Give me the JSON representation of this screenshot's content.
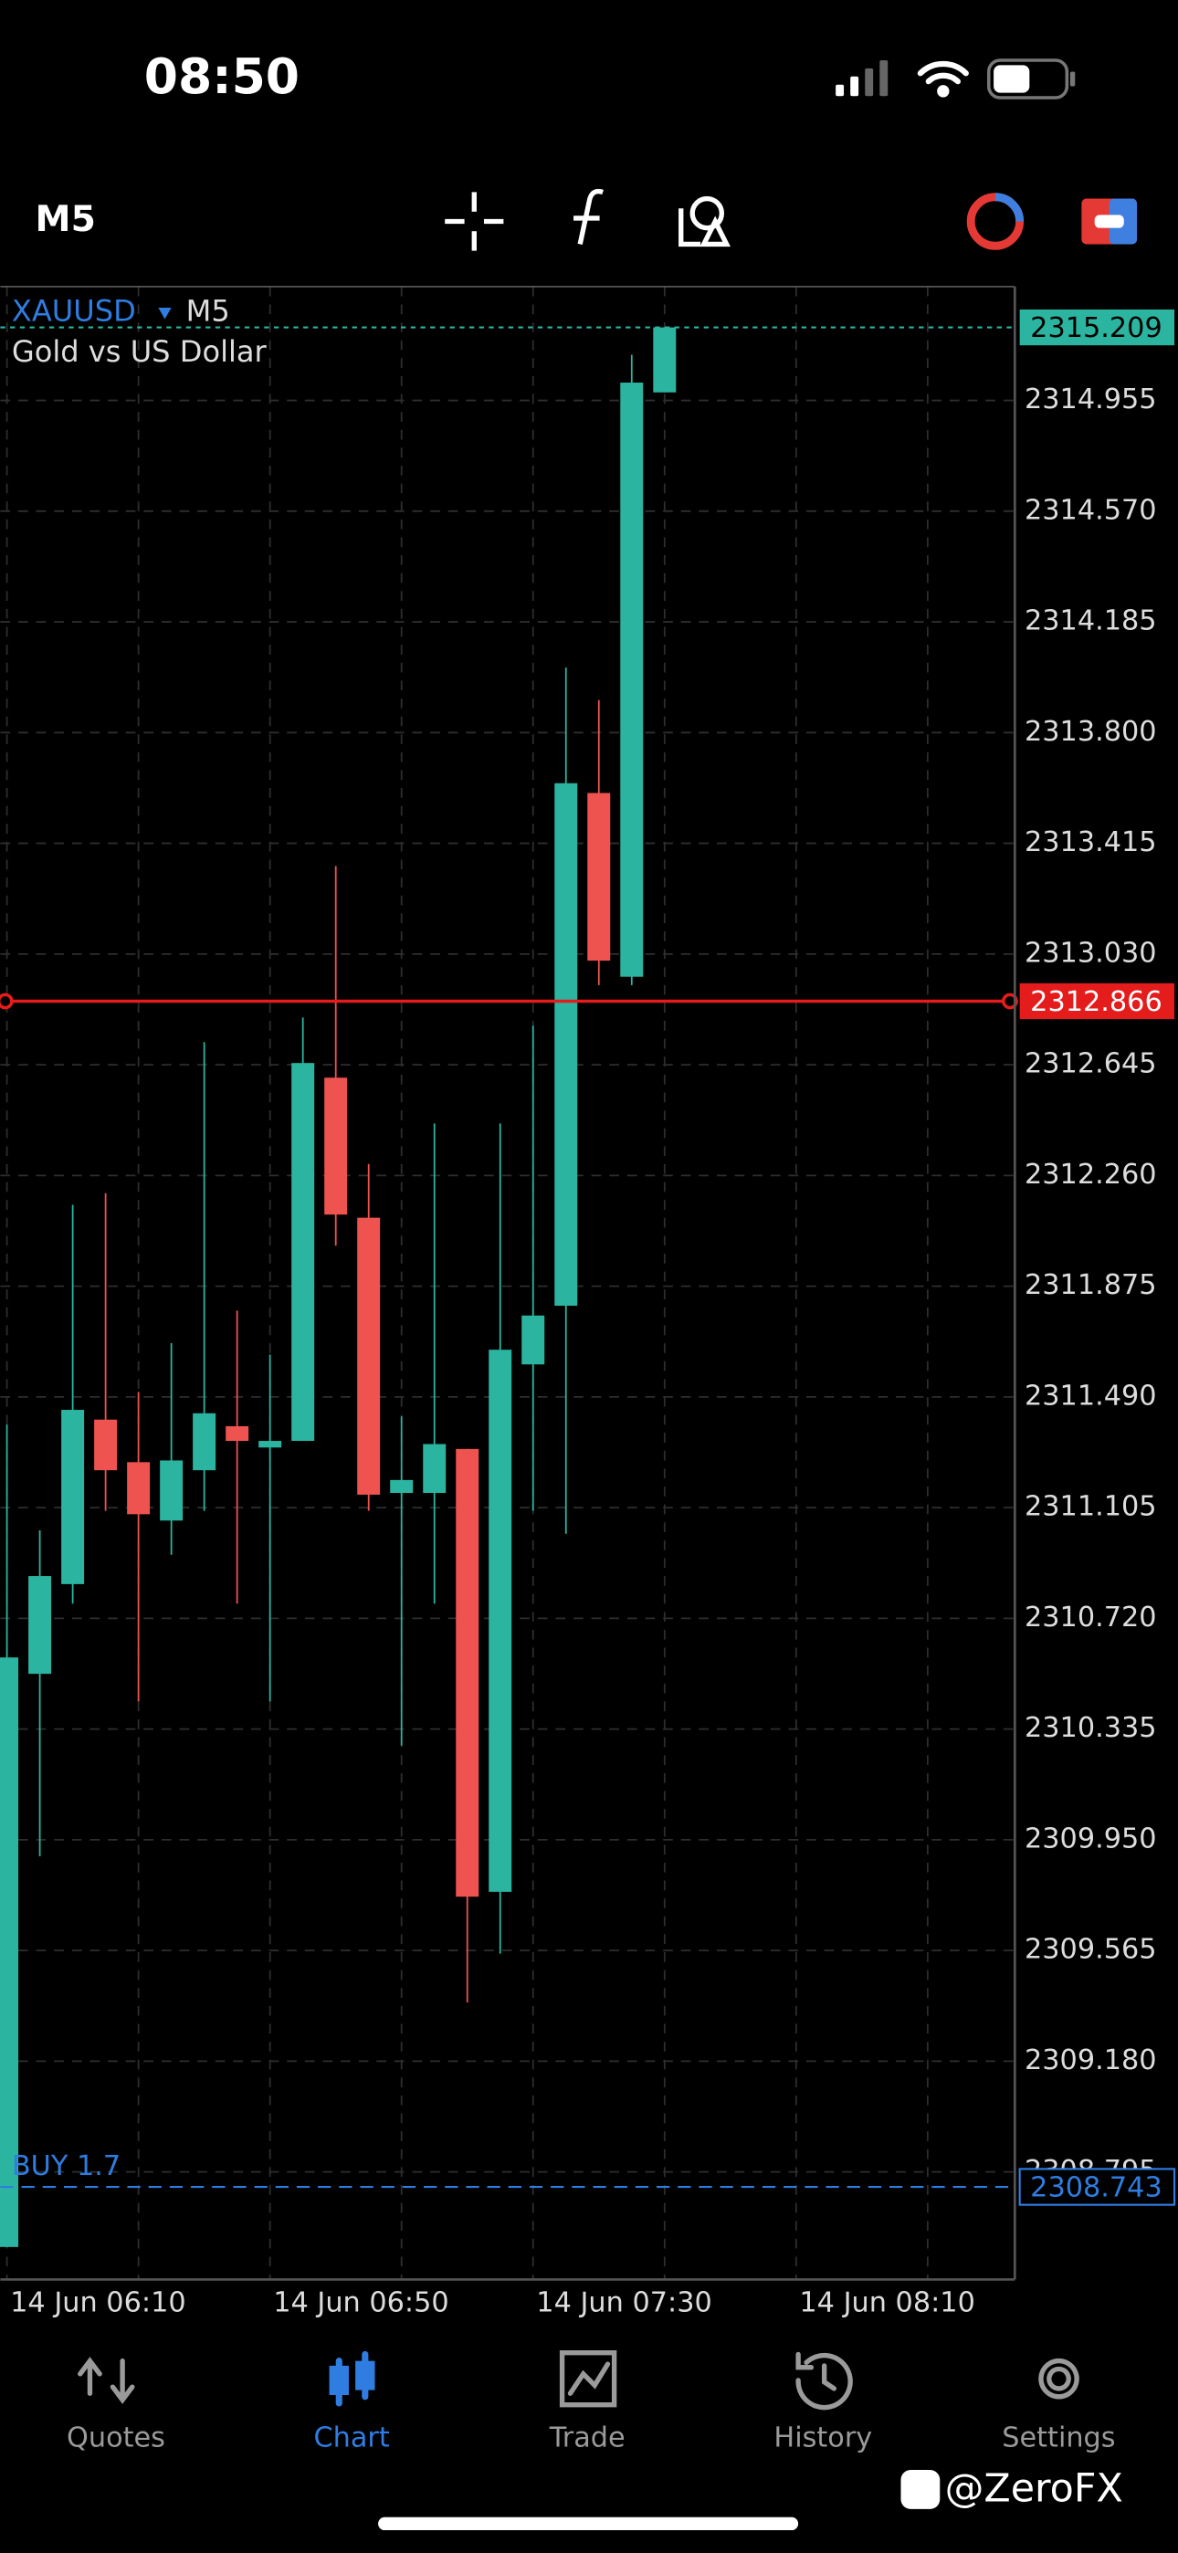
{
  "status_bar": {
    "time": "08:50"
  },
  "toolbar": {
    "timeframe": "M5"
  },
  "chart_data": {
    "type": "candlestick",
    "symbol": "XAUUSD",
    "timeframe": "M5",
    "description": "Gold vs US Dollar",
    "up_color": "#2bb5a0",
    "down_color": "#ef5350",
    "grid": true,
    "series": [
      {
        "open": [
          2308.534,
          2310.527,
          2310.839,
          2311.411,
          2311.263,
          2311.06,
          2311.235,
          2311.388,
          2311.314,
          2311.337,
          2312.6,
          2312.113,
          2311.156,
          2311.156,
          2311.309,
          2309.769,
          2311.603,
          2311.807,
          2313.59,
          2312.951,
          2314.983
        ],
        "high": [
          2311.394,
          2311.026,
          2312.158,
          2312.198,
          2311.507,
          2311.677,
          2312.724,
          2311.79,
          2311.637,
          2312.809,
          2313.336,
          2312.3,
          2311.422,
          2312.441,
          2311.309,
          2312.441,
          2312.781,
          2314.026,
          2313.913,
          2315.114,
          2315.209
        ],
        "low": [
          2308.534,
          2309.893,
          2310.771,
          2311.094,
          2310.431,
          2310.941,
          2311.094,
          2310.771,
          2310.431,
          2311.337,
          2312.016,
          2311.094,
          2310.278,
          2310.771,
          2309.384,
          2309.554,
          2311.094,
          2311.014,
          2312.922,
          2312.922,
          2314.983
        ],
        "close": [
          2310.584,
          2310.867,
          2311.445,
          2311.235,
          2311.082,
          2311.269,
          2311.433,
          2311.337,
          2311.337,
          2312.651,
          2312.124,
          2311.15,
          2311.201,
          2311.326,
          2309.752,
          2311.654,
          2311.773,
          2313.624,
          2313.007,
          2315.017,
          2315.209
        ]
      }
    ],
    "ylim": [
      2308.421,
      2315.351
    ],
    "yticks": [
      2314.955,
      {
        "value": 2314.57,
        "label": "2314.570"
      },
      2314.185,
      {
        "value": 2313.8,
        "label": "2313.800"
      },
      2313.415,
      {
        "value": 2313.03,
        "label": "2313.030"
      },
      2312.645,
      {
        "value": 2312.26,
        "label": "2312.260"
      },
      2311.875,
      {
        "value": 2311.49,
        "label": "2311.490"
      },
      2311.105,
      {
        "value": 2310.72,
        "label": "2310.720"
      },
      2310.335,
      {
        "value": 2309.95,
        "label": "2309.950"
      },
      2309.565,
      {
        "value": 2309.18,
        "label": "2309.180"
      },
      2308.795
    ],
    "xlim": [
      -0.2,
      30.65
    ],
    "xticks": [
      {
        "value": 0,
        "label": "14 Jun 06:10"
      },
      {
        "value": 8,
        "label": "14 Jun 06:50"
      },
      {
        "value": 16,
        "label": "14 Jun 07:30"
      },
      {
        "value": 24,
        "label": "14 Jun 08:10"
      }
    ],
    "price_levels": [
      {
        "value": 2315.209,
        "color": "#2bb5a0",
        "style": "dotted"
      },
      {
        "value": 2312.866,
        "color": "#e51c1c",
        "style": "solid"
      }
    ],
    "orders": [
      {
        "label": "BUY 1.7",
        "value": 2308.743,
        "color": "#2f7de1"
      }
    ]
  },
  "tab_bar": {
    "active": 1,
    "tabs": [
      {
        "label": "Quotes"
      },
      {
        "label": "Chart"
      },
      {
        "label": "Trade"
      },
      {
        "label": "History"
      },
      {
        "label": "Settings"
      }
    ]
  },
  "watermark": "@ZeroFX"
}
